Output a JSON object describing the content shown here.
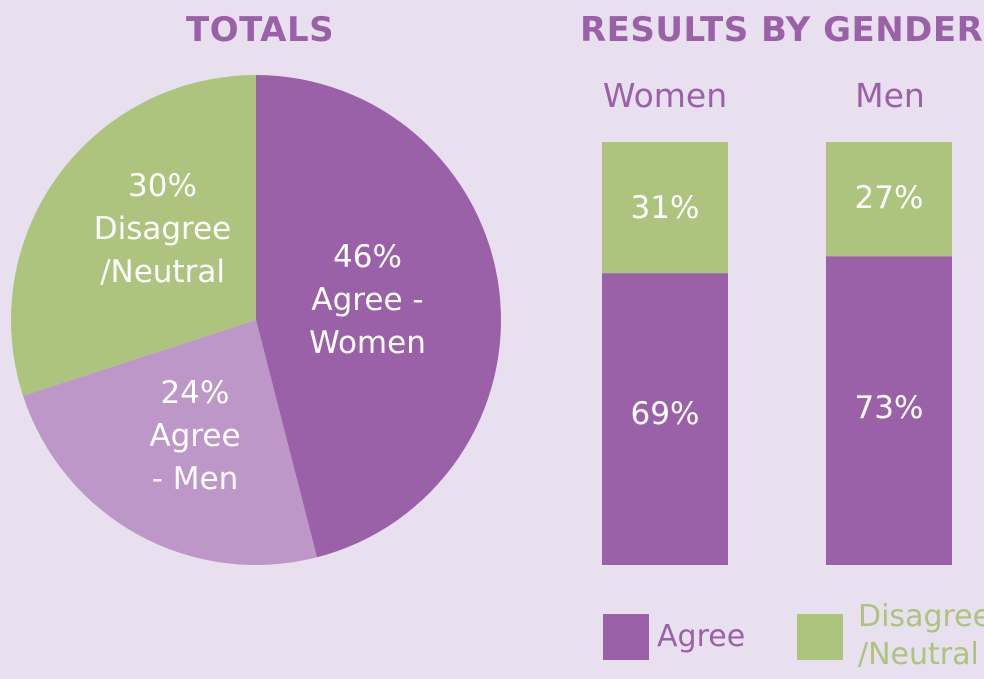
{
  "chart_data": [
    {
      "type": "pie",
      "title": "TOTALS",
      "slices": [
        {
          "label": "46%\nAgree -\nWomen",
          "value": 46,
          "color": "#9b61a8"
        },
        {
          "label": "24%\nAgree\n- Men",
          "value": 24,
          "color": "#bd97c8"
        },
        {
          "label": "30%\nDisagree\n/Neutral",
          "value": 30,
          "color": "#acc47e"
        }
      ]
    },
    {
      "type": "bar",
      "stacked": true,
      "title": "RESULTS BY GENDER",
      "categories": [
        "Women",
        "Men"
      ],
      "series": [
        {
          "name": "Agree",
          "values": [
            69,
            73
          ],
          "labels": [
            "69%",
            "73%"
          ],
          "color": "#9b61a8"
        },
        {
          "name": "Disagree\n/Neutral",
          "values": [
            31,
            27
          ],
          "labels": [
            "31%",
            "27%"
          ],
          "color": "#acc47e"
        }
      ],
      "ylim": [
        0,
        100
      ],
      "legend": "bottom"
    }
  ]
}
